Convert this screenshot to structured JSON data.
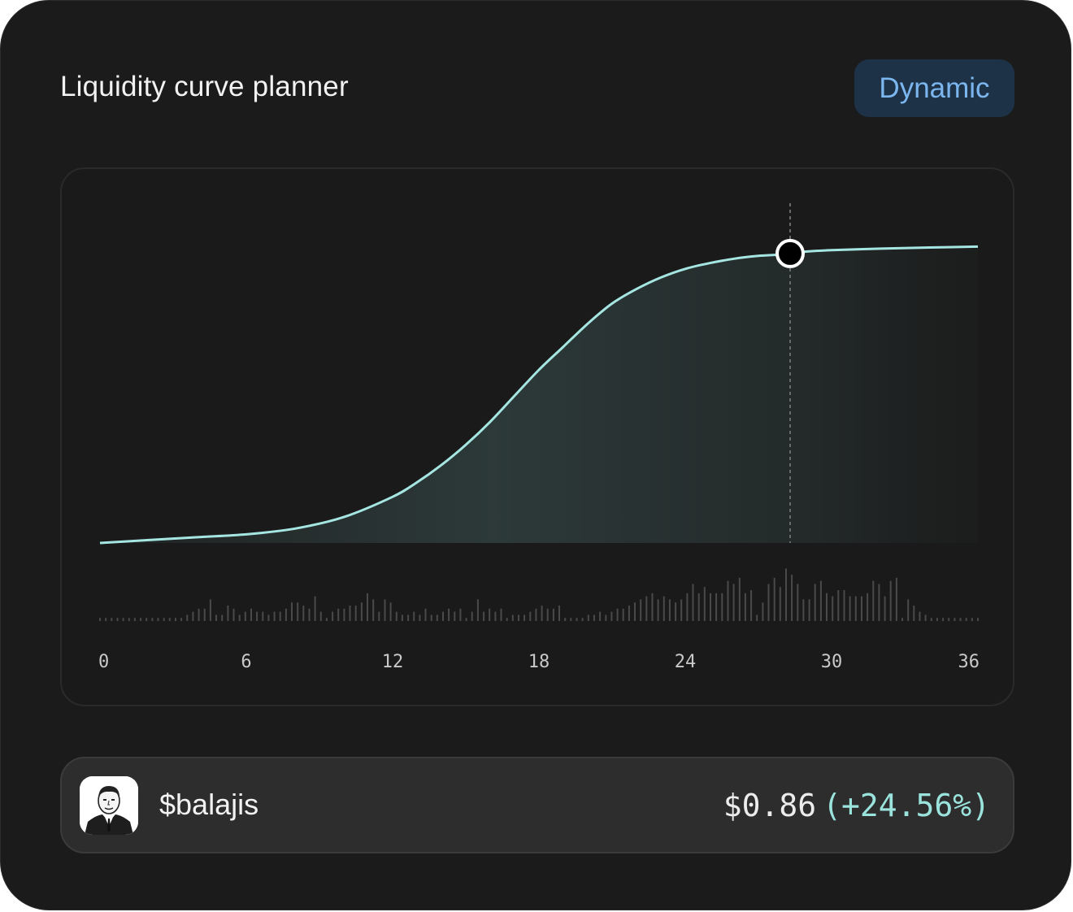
{
  "header": {
    "title": "Liquidity curve planner",
    "mode_badge": "Dynamic"
  },
  "chart_data": {
    "type": "line",
    "xlim": [
      0,
      36
    ],
    "x_ticks": [
      "0",
      "6",
      "12",
      "18",
      "24",
      "30",
      "36"
    ],
    "marker_x": 28.3,
    "curve": {
      "x": [
        0,
        2,
        4,
        6,
        8,
        10,
        12,
        13,
        14,
        15,
        16,
        17,
        18,
        19,
        20,
        21,
        22,
        23,
        24,
        25,
        26,
        27,
        28,
        29,
        30,
        32,
        34,
        36
      ],
      "y": [
        0,
        0.01,
        0.02,
        0.03,
        0.05,
        0.09,
        0.16,
        0.21,
        0.27,
        0.34,
        0.42,
        0.51,
        0.6,
        0.68,
        0.76,
        0.83,
        0.88,
        0.92,
        0.95,
        0.97,
        0.985,
        0.995,
        1.0,
        1.01,
        1.015,
        1.02,
        1.024,
        1.027
      ],
      "color": "#a6e6e2"
    },
    "volume": {
      "values": [
        1,
        1,
        1,
        1,
        1,
        1,
        1,
        1,
        1,
        1,
        1,
        1,
        1,
        1,
        1,
        2,
        3,
        4,
        4,
        7,
        2,
        2,
        5,
        4,
        2,
        3,
        4,
        3,
        3,
        2,
        3,
        3,
        4,
        6,
        6,
        5,
        4,
        8,
        3,
        1,
        3,
        4,
        4,
        5,
        5,
        6,
        9,
        7,
        3,
        7,
        6,
        3,
        2,
        2,
        3,
        2,
        4,
        2,
        2,
        3,
        4,
        3,
        4,
        1,
        3,
        7,
        3,
        4,
        3,
        4,
        1,
        2,
        2,
        2,
        3,
        4,
        5,
        4,
        4,
        5,
        1,
        1,
        1,
        1,
        2,
        2,
        3,
        2,
        3,
        4,
        4,
        5,
        6,
        7,
        8,
        9,
        7,
        8,
        7,
        6,
        7,
        9,
        12,
        9,
        11,
        9,
        9,
        9,
        13,
        12,
        14,
        9,
        10,
        2,
        6,
        12,
        14,
        11,
        17,
        15,
        12,
        7,
        7,
        12,
        13,
        9,
        8,
        10,
        10,
        8,
        8,
        8,
        9,
        13,
        12,
        8,
        13,
        14,
        1,
        7,
        5,
        3,
        2,
        1,
        1,
        1,
        1,
        1,
        1,
        1,
        1,
        1
      ]
    }
  },
  "token": {
    "symbol": "$balajis",
    "price": "$0.86",
    "change": "(+24.56%)"
  },
  "colors": {
    "accent_teal": "#a6e6e2",
    "badge_bg": "#1d3247",
    "badge_text": "#7cb6ee"
  }
}
